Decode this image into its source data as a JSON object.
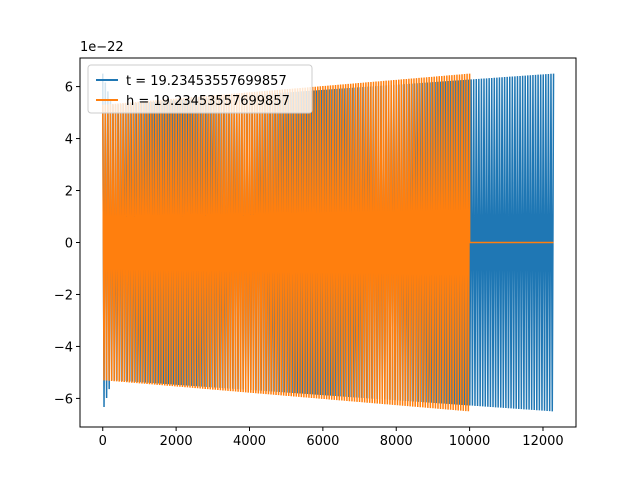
{
  "chart_data": {
    "type": "line",
    "title": "",
    "xlabel": "",
    "ylabel": "",
    "offset_text": "1e−22",
    "xlim": [
      -620,
      12900
    ],
    "ylim": [
      -7.1,
      7.1
    ],
    "x_ticks": [
      0,
      2000,
      4000,
      6000,
      8000,
      10000,
      12000
    ],
    "x_tick_labels": [
      "0",
      "2000",
      "4000",
      "6000",
      "8000",
      "10000",
      "12000"
    ],
    "y_ticks": [
      -6,
      -4,
      -2,
      0,
      2,
      4,
      6
    ],
    "y_tick_labels": [
      "−6",
      "−4",
      "−2",
      "0",
      "2",
      "4",
      "6"
    ],
    "grid": false,
    "legend_position": "top-left",
    "series": [
      {
        "name": "t = 19.23453557699857",
        "color": "#1f77b4",
        "x_start": 0,
        "x_end": 12288,
        "amplitude_start": 6.5,
        "amplitude_mid": 5.3,
        "amplitude_end": 6.5,
        "cycles": 175
      },
      {
        "name": "h = 19.23453557699857",
        "color": "#ff7f0e",
        "x_start": 0,
        "x_end": 10000,
        "x_flat_end": 12288,
        "amplitude_start": 5.3,
        "amplitude_end": 6.5,
        "cycles": 145
      }
    ]
  }
}
